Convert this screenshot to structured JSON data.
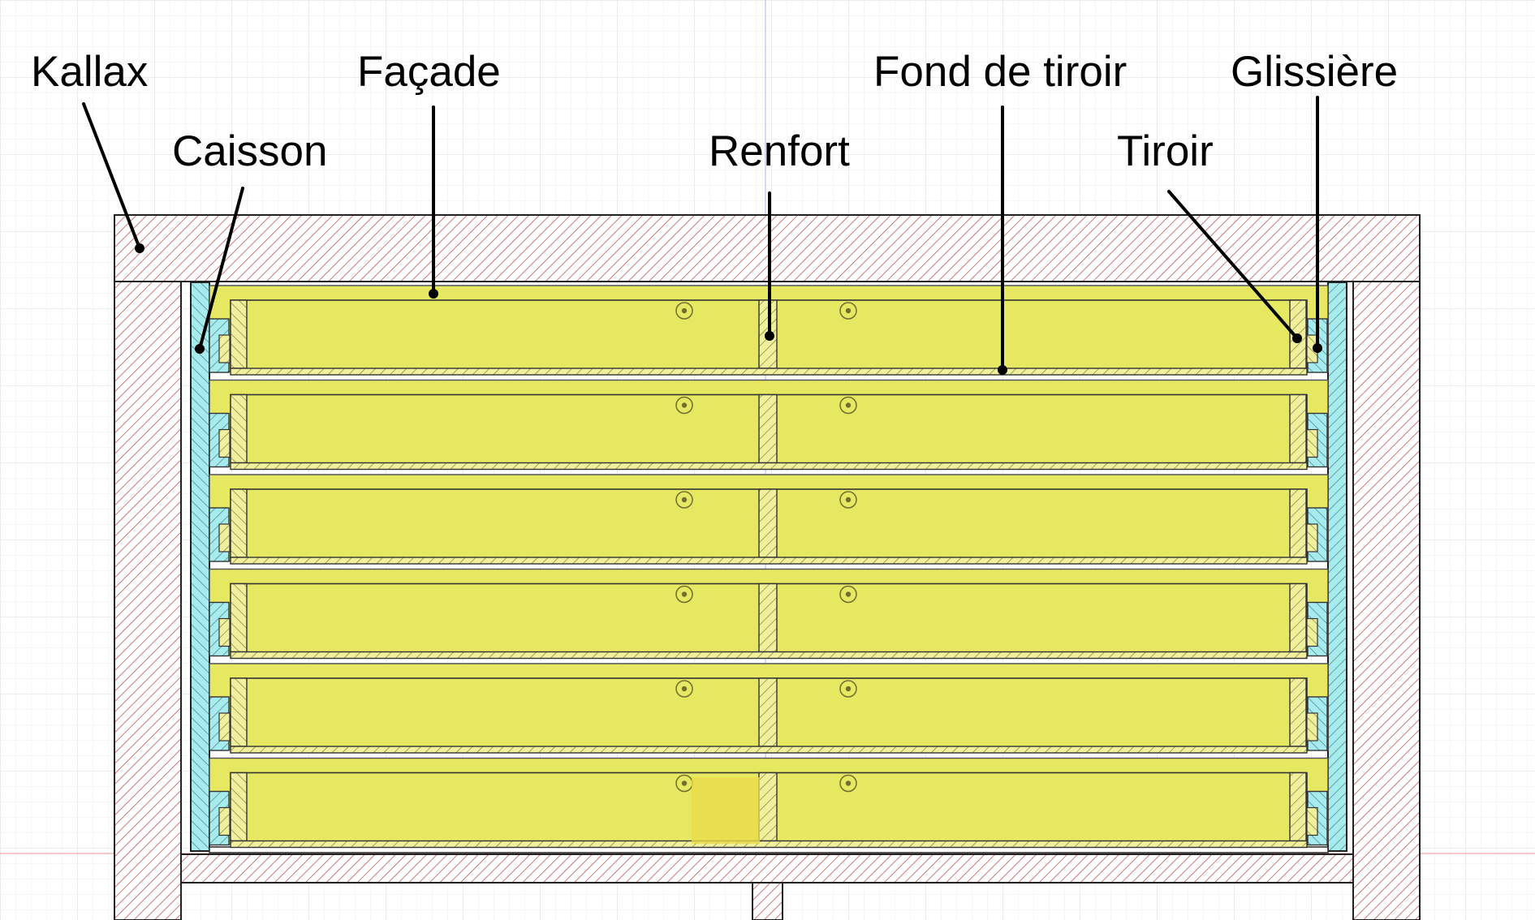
{
  "labels": {
    "kallax": "Kallax",
    "caisson": "Caisson",
    "facade": "Façade",
    "renfort": "Renfort",
    "fond_de_tiroir": "Fond de tiroir",
    "tiroir": "Tiroir",
    "glissiere": "Glissière"
  },
  "drawer_count": 6,
  "colors": {
    "kallax_hatch": "#c0585a",
    "caisson_fill": "#a6ecef",
    "drawer_fill": "#e6e862",
    "background_grid": "#e4e6ea",
    "highlight_square": "#e8db4a",
    "guide_line_red": "#f2a7a7",
    "guide_line_blue": "#b9c2f0",
    "leader_color": "#000000"
  }
}
